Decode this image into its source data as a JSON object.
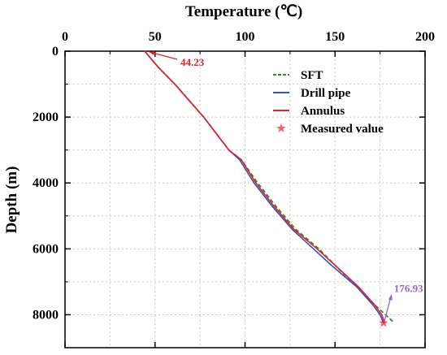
{
  "chart_data": {
    "type": "line",
    "title": "",
    "xlabel": "Temperature (℃)",
    "ylabel": "Depth (m)",
    "xlim": [
      0,
      200
    ],
    "ylim": [
      0,
      9000
    ],
    "y_inverted": true,
    "x_axis_position": "top",
    "x_ticks": [
      "0",
      "50",
      "100",
      "150",
      "200"
    ],
    "x_tick_values": [
      0,
      50,
      100,
      150,
      200
    ],
    "y_ticks": [
      "0",
      "2000",
      "4000",
      "6000",
      "8000"
    ],
    "y_tick_values": [
      0,
      2000,
      4000,
      6000,
      8000
    ],
    "grid": "dotted",
    "legend_position": "top-right",
    "series": [
      {
        "name": "SFT",
        "style": "dashed",
        "color": "#2e8b22",
        "points": [
          [
            44.23,
            0
          ],
          [
            52,
            500
          ],
          [
            61,
            1000
          ],
          [
            69,
            1500
          ],
          [
            77,
            2000
          ],
          [
            84,
            2500
          ],
          [
            91,
            3000
          ],
          [
            98,
            3300
          ],
          [
            107,
            4000
          ],
          [
            117,
            4700
          ],
          [
            128,
            5400
          ],
          [
            141,
            6000
          ],
          [
            150,
            6500
          ],
          [
            163,
            7200
          ],
          [
            172,
            7700
          ],
          [
            178,
            8000
          ],
          [
            183,
            8250
          ]
        ]
      },
      {
        "name": "Drill pipe",
        "style": "solid",
        "color": "#2b55c7",
        "points": [
          [
            44.23,
            0
          ],
          [
            52,
            500
          ],
          [
            61,
            1000
          ],
          [
            69,
            1500
          ],
          [
            77,
            2000
          ],
          [
            84,
            2500
          ],
          [
            91,
            3000
          ],
          [
            97,
            3300
          ],
          [
            105,
            4000
          ],
          [
            115,
            4700
          ],
          [
            126,
            5400
          ],
          [
            138,
            6000
          ],
          [
            148,
            6500
          ],
          [
            162,
            7150
          ],
          [
            171,
            7700
          ],
          [
            175,
            8000
          ],
          [
            176.93,
            8250
          ]
        ]
      },
      {
        "name": "Annulus",
        "style": "solid",
        "color": "#e8202a",
        "points": [
          [
            44.23,
            0
          ],
          [
            52,
            500
          ],
          [
            61,
            1000
          ],
          [
            69,
            1500
          ],
          [
            77,
            2000
          ],
          [
            84,
            2500
          ],
          [
            91,
            3000
          ],
          [
            98,
            3300
          ],
          [
            106,
            4000
          ],
          [
            116,
            4700
          ],
          [
            127,
            5400
          ],
          [
            140,
            6000
          ],
          [
            150,
            6500
          ],
          [
            163,
            7150
          ],
          [
            172,
            7700
          ],
          [
            176,
            8000
          ],
          [
            177.5,
            8250
          ]
        ]
      },
      {
        "name": "Measured value",
        "style": "marker",
        "color": "#e8202a",
        "points": [
          [
            176.93,
            8250
          ]
        ]
      }
    ],
    "annotations": [
      {
        "text": "44.23",
        "at": [
          44.23,
          0
        ],
        "color": "#e8202a"
      },
      {
        "text": "176.93",
        "at": [
          176.93,
          8250
        ],
        "color": "#9966cc"
      }
    ]
  }
}
